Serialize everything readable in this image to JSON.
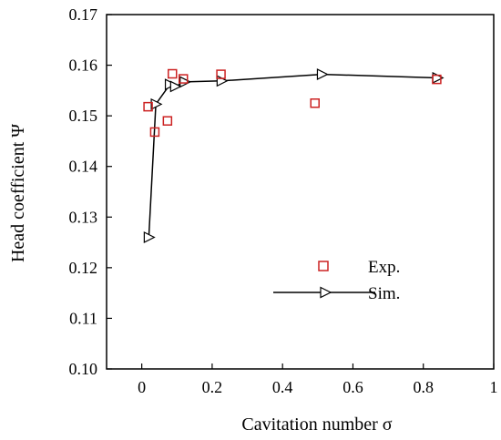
{
  "chart_data": {
    "type": "scatter",
    "title": "",
    "xlabel": "Cavitation number σ",
    "ylabel": "Head coefficient Ψ",
    "xlim": [
      -0.1,
      1.0
    ],
    "ylim": [
      0.1,
      0.17
    ],
    "xticks": [
      {
        "value": 0,
        "label": "0"
      },
      {
        "value": 0.2,
        "label": "0.2"
      },
      {
        "value": 0.4,
        "label": "0.4"
      },
      {
        "value": 0.6,
        "label": "0.6"
      },
      {
        "value": 0.8,
        "label": "0.8"
      },
      {
        "value": 1.0,
        "label": "1"
      }
    ],
    "yticks": [
      {
        "value": 0.1,
        "label": "0.10"
      },
      {
        "value": 0.11,
        "label": "0.11"
      },
      {
        "value": 0.12,
        "label": "0.12"
      },
      {
        "value": 0.13,
        "label": "0.13"
      },
      {
        "value": 0.14,
        "label": "0.14"
      },
      {
        "value": 0.15,
        "label": "0.15"
      },
      {
        "value": 0.16,
        "label": "0.16"
      },
      {
        "value": 0.17,
        "label": "0.17"
      }
    ],
    "grid": false,
    "legend_position": "bottom-right",
    "series": [
      {
        "name": "Exp.",
        "marker": "open-square",
        "line": false,
        "color": "#cc2222",
        "points": [
          {
            "x": 0.018,
            "y": 0.1518
          },
          {
            "x": 0.037,
            "y": 0.1468
          },
          {
            "x": 0.073,
            "y": 0.149
          },
          {
            "x": 0.087,
            "y": 0.1583
          },
          {
            "x": 0.118,
            "y": 0.1573
          },
          {
            "x": 0.225,
            "y": 0.1582
          },
          {
            "x": 0.492,
            "y": 0.1525
          },
          {
            "x": 0.838,
            "y": 0.1572
          }
        ]
      },
      {
        "name": "Sim.",
        "marker": "open-triangle-right",
        "line": true,
        "color": "#000000",
        "points": [
          {
            "x": 0.02,
            "y": 0.126
          },
          {
            "x": 0.04,
            "y": 0.1523
          },
          {
            "x": 0.08,
            "y": 0.1562
          },
          {
            "x": 0.095,
            "y": 0.1558
          },
          {
            "x": 0.122,
            "y": 0.1567
          },
          {
            "x": 0.227,
            "y": 0.1569
          },
          {
            "x": 0.512,
            "y": 0.1582
          },
          {
            "x": 0.84,
            "y": 0.1575
          }
        ]
      }
    ]
  }
}
